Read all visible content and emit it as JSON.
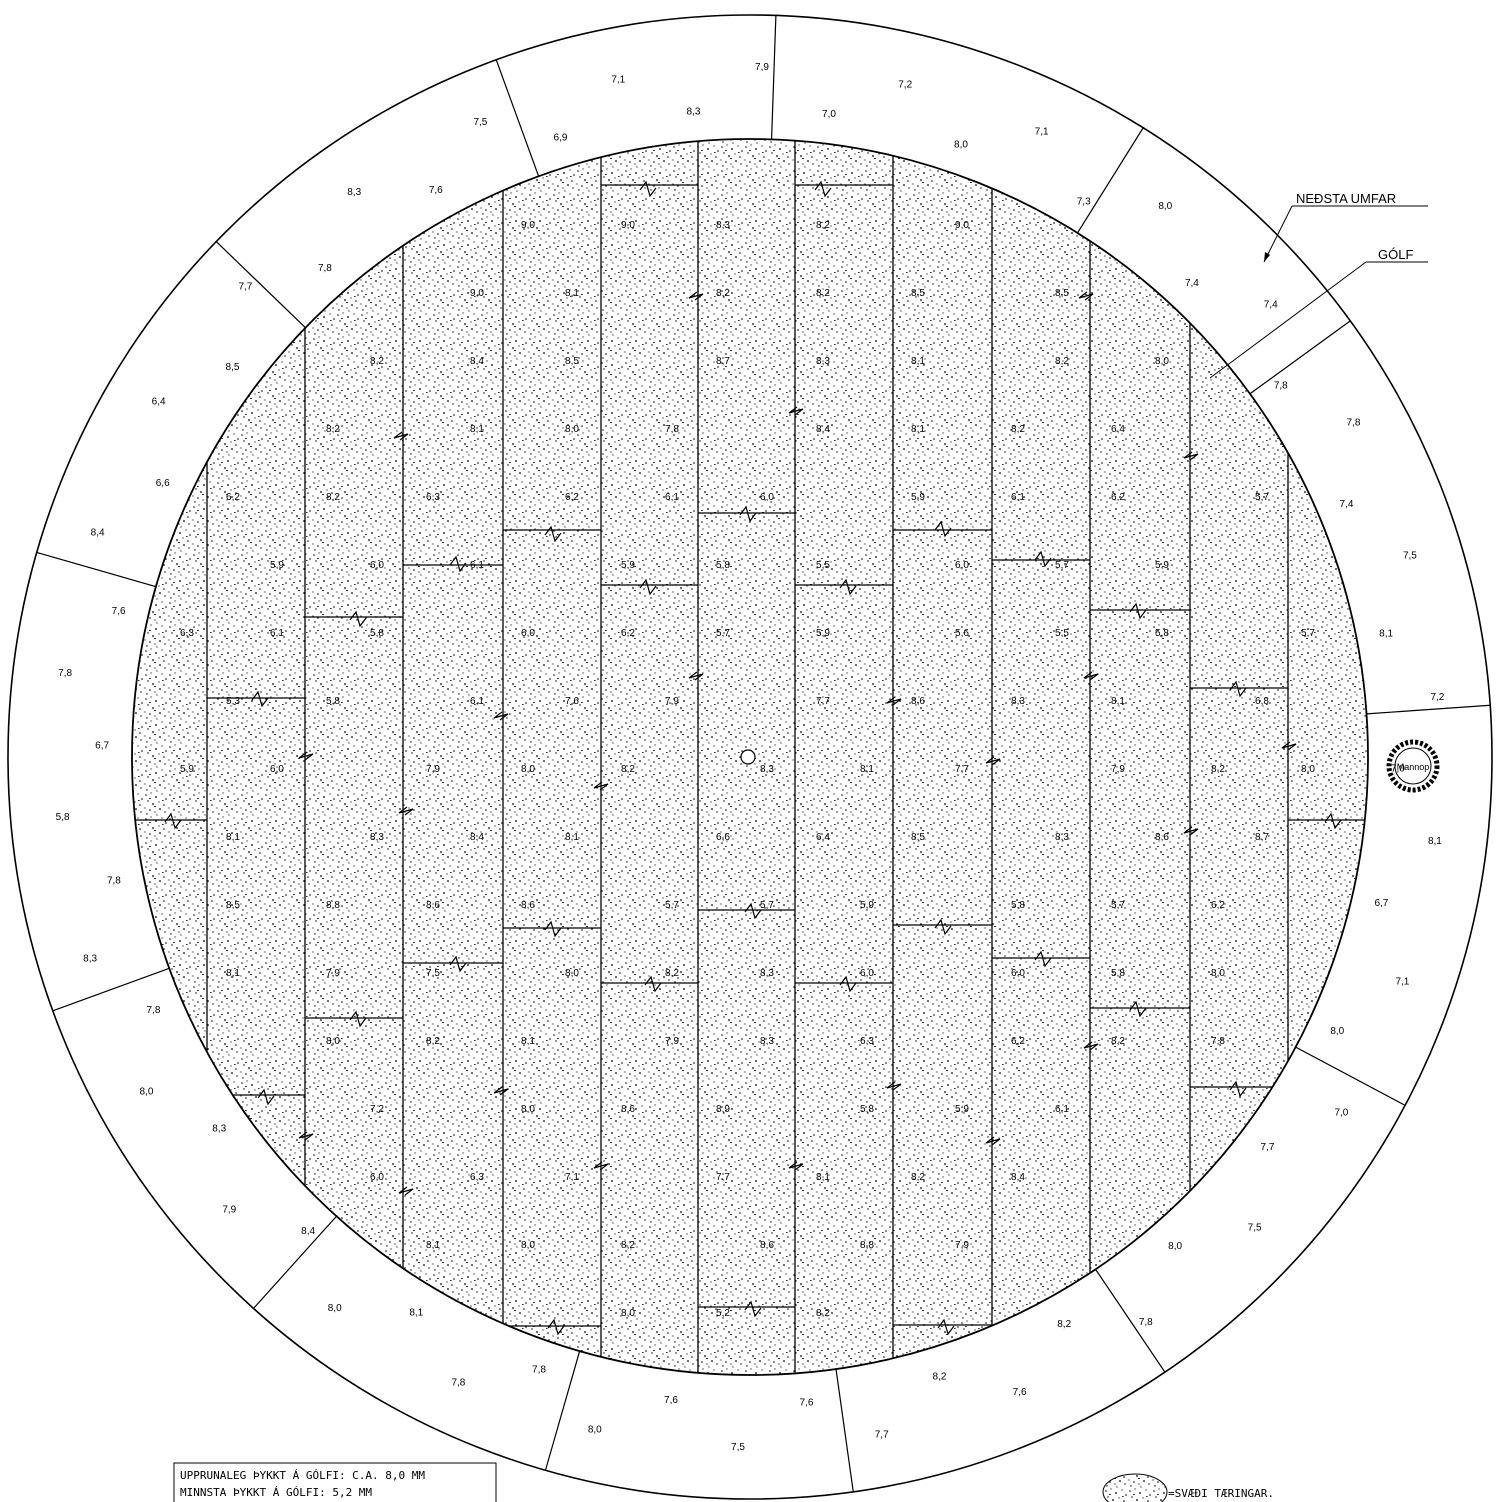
{
  "callouts": {
    "lowest_course": "NEÐSTA UMFAR",
    "floor": "GÓLF"
  },
  "manhole_label": "Mannop",
  "notes": {
    "line1": "UPPRUNALEG ÞYKKT Á GÓLFI: C.A. 8,0 MM",
    "line2": "MINNSTA ÞYKKT Á GÓLFI: 5,2 MM"
  },
  "legend": {
    "label": "=SVÆÐI TÆRINGAR."
  },
  "ring_readings": [
    "8,3",
    "7,9",
    "7,0",
    "7,2",
    "8,0",
    "7,1",
    "7,3",
    "8,0",
    "7,4",
    "7,4",
    "7,8",
    "7,8",
    "7,4",
    "7,5",
    "8,1",
    "7,2",
    "7,0",
    "8,1",
    "6,7",
    "7,1",
    "8,0",
    "7,0",
    "7,7",
    "7,5",
    "8,0",
    "7,8",
    "8,2",
    "7,6",
    "8,2",
    "7,7",
    "7,6",
    "7,5",
    "7,6",
    "8,0",
    "7,8",
    "7,8",
    "8,1",
    "8,0",
    "8,4",
    "7,9",
    "8,3",
    "8,0",
    "7,8",
    "8,3",
    "7,8",
    "5,8",
    "6,7",
    "7,8",
    "7,6",
    "8,4",
    "6,6",
    "6,4",
    "8,5",
    "7,7",
    "7,8",
    "8,3",
    "7,6",
    "7,5",
    "6,9",
    "7,1"
  ],
  "floor_readings": [
    "9,0",
    "9,0",
    "8,3",
    "8,2",
    "9,0",
    "9,0",
    "8,1",
    "8,2",
    "8,2",
    "8,5",
    "8,5",
    "8,2",
    "8,4",
    "8,5",
    "8,7",
    "8,3",
    "8,1",
    "8,2",
    "8,0",
    "8,2",
    "8,1",
    "8,0",
    "7,8",
    "8,4",
    "8,1",
    "8,2",
    "6,4",
    "6,2",
    "8,2",
    "6,3",
    "6,2",
    "6,1",
    "6,0",
    "5,9",
    "6,1",
    "6,2",
    "5,7",
    "5,9",
    "6,0",
    "6,1",
    "5,9",
    "5,8",
    "5,5",
    "6,0",
    "5,7",
    "5,9",
    "6,3",
    "6,1",
    "5,8",
    "6,0",
    "6,2",
    "5,7",
    "5,9",
    "5,6",
    "5,5",
    "5,8",
    "5,7",
    "5,3",
    "5,8",
    "6,1",
    "7,6",
    "7,9",
    "7,7",
    "8,6",
    "8,3",
    "8,1",
    "6,8",
    "5,9",
    "6,0",
    "7,9",
    "8,0",
    "8,2",
    "8,3",
    "8,1",
    "7,7",
    "7,9",
    "8,2",
    "8,0",
    "8,1",
    "8,3",
    "8,4",
    "8,1",
    "6,6",
    "6,4",
    "8,5",
    "8,3",
    "8,6",
    "8,7",
    "8,5",
    "8,8",
    "8,6",
    "8,6",
    "5,7",
    "5,7",
    "5,9",
    "5,8",
    "5,7",
    "6,2",
    "8,1",
    "7,9",
    "7,5",
    "8,0",
    "8,2",
    "8,3",
    "6,0",
    "6,0",
    "5,8",
    "8,0",
    "8,0",
    "8,2",
    "8,1",
    "7,9",
    "8,3",
    "6,3",
    "6,2",
    "8,2",
    "7,8",
    "7,2",
    "8,0",
    "8,6",
    "8,9",
    "5,8",
    "5,9",
    "6,1",
    "6,0",
    "6,3",
    "7,1",
    "7,7",
    "8,1",
    "8,2",
    "8,4",
    "8,1",
    "8,0",
    "8,2",
    "8,6",
    "8,8",
    "7,9",
    "8,0",
    "5,2",
    "8,2"
  ]
}
